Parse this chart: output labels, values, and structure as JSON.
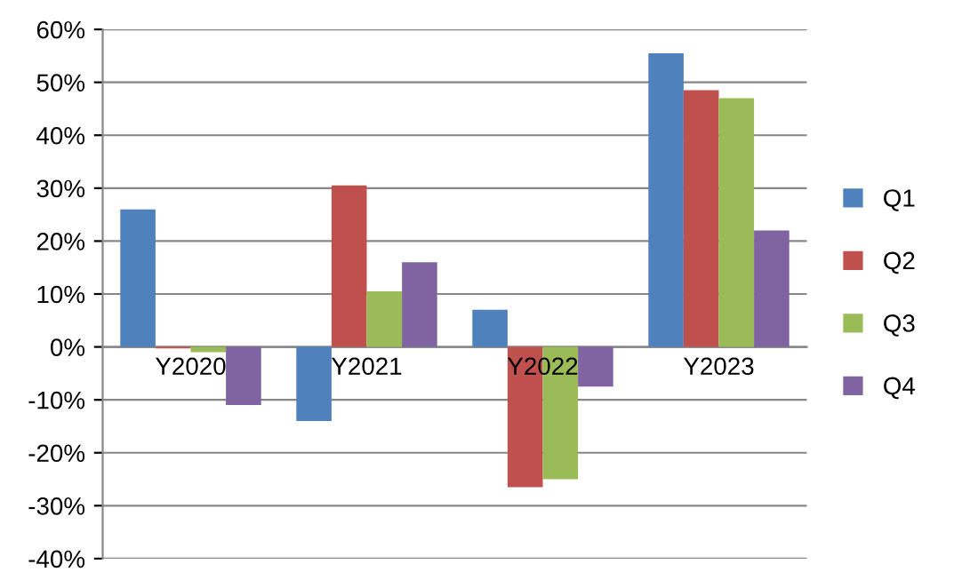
{
  "chart_data": {
    "type": "bar",
    "categories": [
      "Y2020",
      "Y2021",
      "Y2022",
      "Y2023"
    ],
    "series": [
      {
        "name": "Q1",
        "color": "#4f81bd",
        "values": [
          26,
          -14,
          7,
          55.5
        ]
      },
      {
        "name": "Q2",
        "color": "#c0504d",
        "values": [
          -0.3,
          30.5,
          -26.5,
          48.5
        ]
      },
      {
        "name": "Q3",
        "color": "#9bbb59",
        "values": [
          -1,
          10.5,
          -25,
          47
        ]
      },
      {
        "name": "Q4",
        "color": "#8064a2",
        "values": [
          -11,
          16,
          -7.5,
          22
        ]
      }
    ],
    "ylim": [
      -40,
      60
    ],
    "yticks": [
      {
        "value": -40,
        "label": "-40%"
      },
      {
        "value": -30,
        "label": "-30%"
      },
      {
        "value": -20,
        "label": "-20%"
      },
      {
        "value": -10,
        "label": "-10%"
      },
      {
        "value": 0,
        "label": "0%"
      },
      {
        "value": 10,
        "label": "10%"
      },
      {
        "value": 20,
        "label": "20%"
      },
      {
        "value": 30,
        "label": "30%"
      },
      {
        "value": 40,
        "label": "40%"
      },
      {
        "value": 50,
        "label": "50%"
      },
      {
        "value": 60,
        "label": "60%"
      }
    ],
    "grid": "y",
    "legend": "right"
  }
}
